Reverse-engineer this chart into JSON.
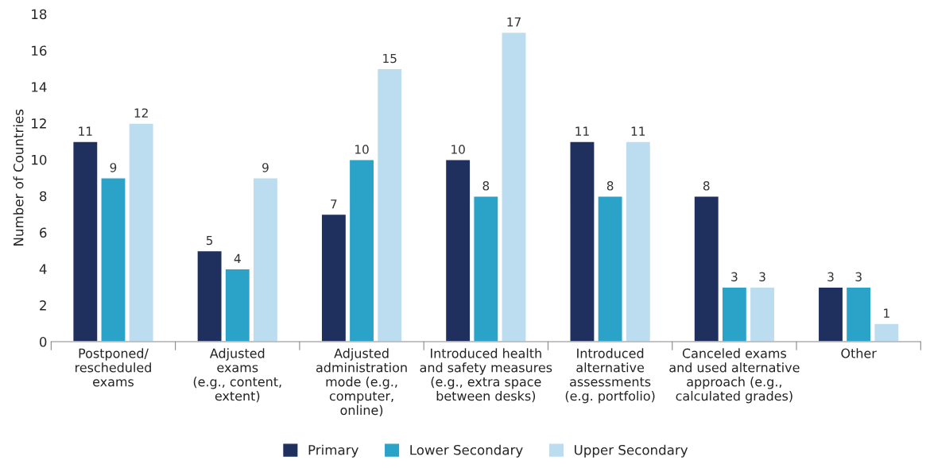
{
  "chart_data": {
    "type": "bar",
    "ylabel": "Number of Countries",
    "categories": [
      "Postponed/\nrescheduled\nexams",
      "Adjusted\nexams\n(e.g., content,\nextent)",
      "Adjusted\nadministration\nmode (e.g.,\ncomputer,\nonline)",
      "Introduced health\nand safety measures\n(e.g., extra space\nbetween desks)",
      "Introduced\nalternative\nassessments\n(e.g. portfolio)",
      "Canceled exams\nand used alternative\napproach (e.g.,\ncalculated grades)",
      "Other"
    ],
    "series": [
      {
        "name": "Primary",
        "color": "#1f2f5e",
        "values": [
          11,
          5,
          7,
          10,
          11,
          8,
          3
        ]
      },
      {
        "name": "Lower Secondary",
        "color": "#2ba3c8",
        "values": [
          9,
          4,
          10,
          8,
          8,
          3,
          3
        ]
      },
      {
        "name": "Upper Secondary",
        "color": "#bcdcef",
        "values": [
          12,
          9,
          15,
          17,
          11,
          3,
          1
        ]
      }
    ],
    "ylim": [
      0,
      18
    ],
    "yticks": [
      0,
      2,
      4,
      6,
      8,
      10,
      12,
      14,
      16,
      18
    ],
    "data_labels": true,
    "grid": false,
    "legend": "bottom"
  }
}
